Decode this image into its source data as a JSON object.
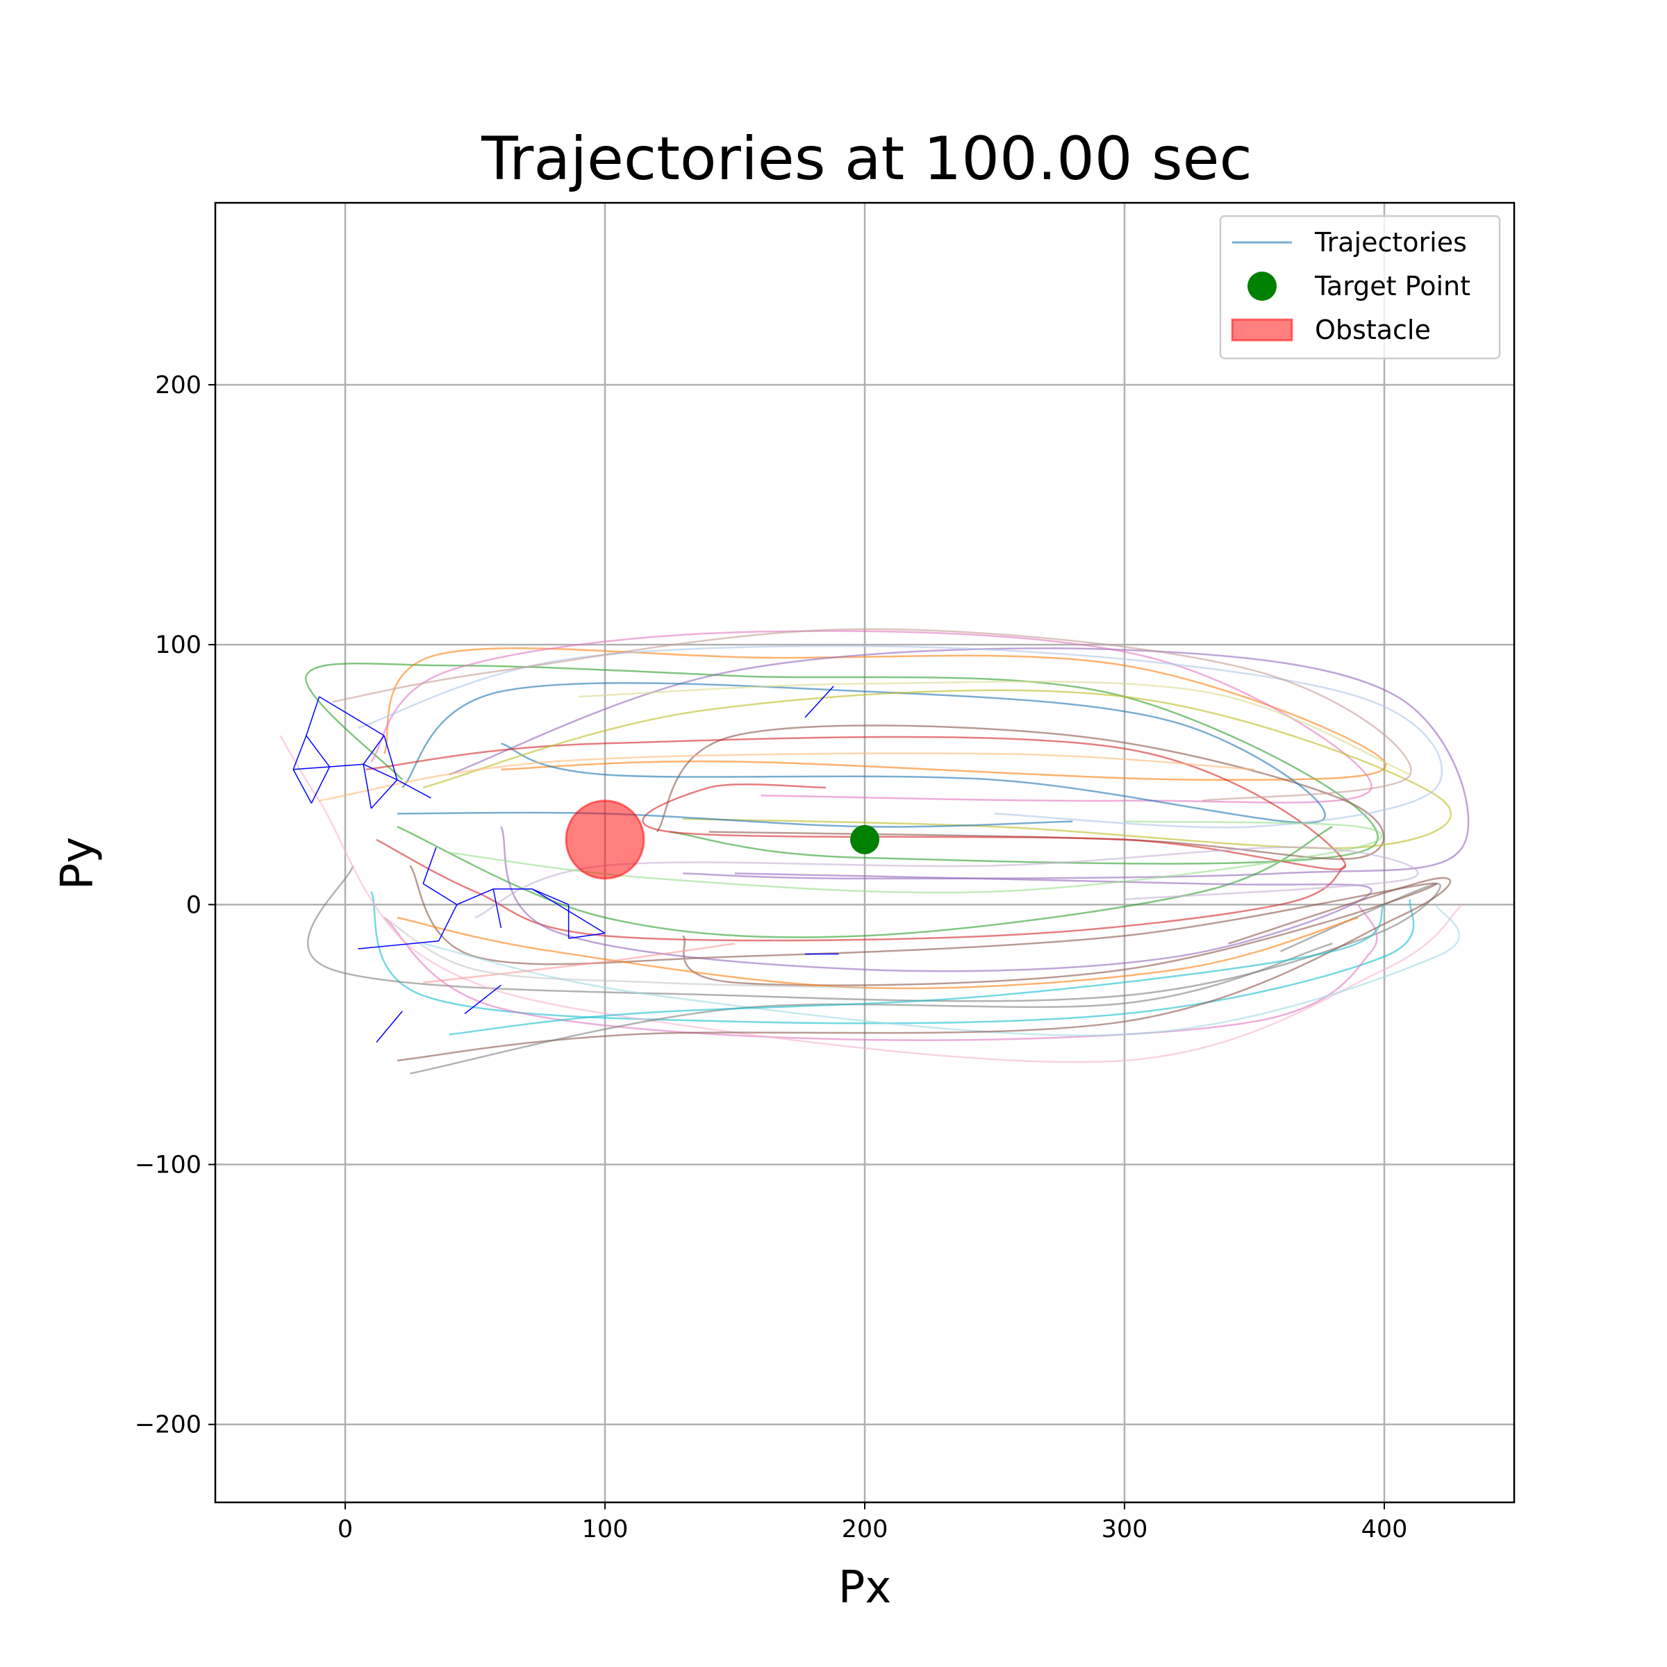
{
  "chart_data": {
    "type": "line",
    "title": "Trajectories at 100.00 sec",
    "xlabel": "Px",
    "ylabel": "Py",
    "xlim": [
      -50,
      450
    ],
    "ylim": [
      -230,
      270
    ],
    "xticks": [
      0,
      100,
      200,
      300,
      400
    ],
    "yticks": [
      -200,
      -100,
      0,
      100,
      200
    ],
    "xtick_labels": [
      "0",
      "100",
      "200",
      "300",
      "400"
    ],
    "ytick_labels": [
      "−200",
      "−100",
      "0",
      "100",
      "200"
    ],
    "grid": true,
    "legend_position": "top-right",
    "legend": [
      {
        "label": "Trajectories",
        "marker": "line",
        "color": "#1f77b4"
      },
      {
        "label": "Target Point",
        "marker": "circle",
        "color": "#008000"
      },
      {
        "label": "Obstacle",
        "marker": "patch",
        "color": "#ff0000"
      }
    ],
    "target_point": {
      "x": 200,
      "y": 25
    },
    "obstacle": {
      "center": [
        100,
        25
      ],
      "radius": 15
    },
    "palette": [
      "#1f77b4",
      "#aec7e8",
      "#ff7f0e",
      "#ffbb78",
      "#2ca02c",
      "#98df8a",
      "#d62728",
      "#ff9896",
      "#9467bd",
      "#c5b0d5",
      "#8c564b",
      "#c49c94",
      "#e377c2",
      "#f7b6d2",
      "#7f7f7f",
      "#c7c7c7",
      "#bcbd22",
      "#dbdb8d",
      "#17becf",
      "#9edae5"
    ],
    "series": [
      {
        "color": "#2ca02c",
        "points": [
          [
            22,
            48
          ],
          [
            -15,
            88
          ],
          [
            40,
            92
          ],
          [
            150,
            88
          ],
          [
            300,
            80
          ],
          [
            395,
            22
          ],
          [
            200,
            18
          ],
          [
            125,
            28
          ]
        ]
      },
      {
        "color": "#ff7f0e",
        "points": [
          [
            15,
            58
          ],
          [
            35,
            96
          ],
          [
            160,
            95
          ],
          [
            300,
            92
          ],
          [
            400,
            55
          ],
          [
            330,
            48
          ],
          [
            150,
            55
          ],
          [
            60,
            52
          ]
        ]
      },
      {
        "color": "#9467bd",
        "points": [
          [
            40,
            50
          ],
          [
            150,
            90
          ],
          [
            300,
            98
          ],
          [
            405,
            80
          ],
          [
            430,
            22
          ],
          [
            360,
            12
          ],
          [
            200,
            10
          ],
          [
            130,
            12
          ]
        ]
      },
      {
        "color": "#e377c2",
        "points": [
          [
            10,
            55
          ],
          [
            40,
            90
          ],
          [
            160,
            105
          ],
          [
            310,
            95
          ],
          [
            395,
            45
          ],
          [
            300,
            40
          ],
          [
            160,
            42
          ]
        ]
      },
      {
        "color": "#8c564b",
        "points": [
          [
            120,
            28
          ],
          [
            150,
            65
          ],
          [
            280,
            65
          ],
          [
            385,
            40
          ],
          [
            390,
            18
          ],
          [
            300,
            25
          ],
          [
            140,
            28
          ]
        ]
      },
      {
        "color": "#1f77b4",
        "points": [
          [
            22,
            45
          ],
          [
            60,
            82
          ],
          [
            200,
            82
          ],
          [
            320,
            70
          ],
          [
            375,
            32
          ],
          [
            250,
            48
          ],
          [
            100,
            50
          ],
          [
            60,
            62
          ]
        ]
      },
      {
        "color": "#d62728",
        "points": [
          [
            8,
            52
          ],
          [
            100,
            62
          ],
          [
            300,
            60
          ],
          [
            385,
            15
          ],
          [
            300,
            25
          ],
          [
            125,
            28
          ],
          [
            140,
            45
          ],
          [
            185,
            45
          ]
        ]
      },
      {
        "color": "#bcbd22",
        "points": [
          [
            30,
            45
          ],
          [
            140,
            75
          ],
          [
            300,
            80
          ],
          [
            420,
            42
          ],
          [
            390,
            22
          ],
          [
            250,
            30
          ],
          [
            130,
            33
          ]
        ]
      },
      {
        "color": "#aec7e8",
        "points": [
          [
            5,
            68
          ],
          [
            90,
            95
          ],
          [
            250,
            98
          ],
          [
            390,
            80
          ],
          [
            420,
            45
          ],
          [
            350,
            30
          ],
          [
            250,
            35
          ]
        ]
      },
      {
        "color": "#c49c94",
        "points": [
          [
            -5,
            78
          ],
          [
            60,
            90
          ],
          [
            200,
            106
          ],
          [
            350,
            90
          ],
          [
            410,
            50
          ],
          [
            330,
            40
          ]
        ]
      },
      {
        "color": "#17becf",
        "points": [
          [
            10,
            5
          ],
          [
            30,
            -35
          ],
          [
            150,
            -45
          ],
          [
            300,
            -42
          ],
          [
            400,
            -20
          ],
          [
            410,
            2
          ]
        ]
      },
      {
        "color": "#7f7f7f",
        "points": [
          [
            3,
            15
          ],
          [
            -5,
            -25
          ],
          [
            150,
            -35
          ],
          [
            300,
            -35
          ],
          [
            395,
            -12
          ],
          [
            420,
            8
          ],
          [
            360,
            -18
          ]
        ]
      },
      {
        "color": "#e377c2",
        "points": [
          [
            15,
            -5
          ],
          [
            60,
            -40
          ],
          [
            200,
            -52
          ],
          [
            350,
            -45
          ],
          [
            395,
            -18
          ],
          [
            390,
            0
          ]
        ]
      },
      {
        "color": "#d62728",
        "points": [
          [
            12,
            25
          ],
          [
            50,
            5
          ],
          [
            100,
            -12
          ],
          [
            250,
            -12
          ],
          [
            360,
            0
          ],
          [
            385,
            15
          ]
        ]
      },
      {
        "color": "#2ca02c",
        "points": [
          [
            20,
            30
          ],
          [
            100,
            -5
          ],
          [
            200,
            -12
          ],
          [
            330,
            5
          ],
          [
            380,
            30
          ]
        ]
      },
      {
        "color": "#9467bd",
        "points": [
          [
            60,
            30
          ],
          [
            80,
            -10
          ],
          [
            200,
            -25
          ],
          [
            320,
            -20
          ],
          [
            395,
            5
          ],
          [
            330,
            8
          ],
          [
            150,
            12
          ]
        ]
      },
      {
        "color": "#8c564b",
        "points": [
          [
            25,
            15
          ],
          [
            50,
            -20
          ],
          [
            150,
            -20
          ],
          [
            300,
            -12
          ],
          [
            420,
            8
          ],
          [
            300,
            -25
          ],
          [
            150,
            -30
          ],
          [
            130,
            -12
          ]
        ]
      },
      {
        "color": "#f7b6d2",
        "points": [
          [
            -25,
            65
          ],
          [
            -10,
            40
          ],
          [
            30,
            -20
          ],
          [
            120,
            -45
          ],
          [
            300,
            -60
          ],
          [
            400,
            -25
          ],
          [
            430,
            0
          ]
        ]
      },
      {
        "color": "#9edae5",
        "points": [
          [
            30,
            -15
          ],
          [
            120,
            -35
          ],
          [
            300,
            -50
          ],
          [
            420,
            -20
          ],
          [
            420,
            0
          ]
        ]
      },
      {
        "color": "#ff7f0e",
        "points": [
          [
            20,
            -5
          ],
          [
            80,
            -18
          ],
          [
            200,
            -32
          ],
          [
            320,
            -25
          ],
          [
            390,
            -5
          ]
        ]
      },
      {
        "color": "#c5b0d5",
        "points": [
          [
            50,
            -5
          ],
          [
            100,
            15
          ],
          [
            250,
            15
          ],
          [
            370,
            22
          ],
          [
            410,
            10
          ],
          [
            300,
            2
          ]
        ]
      },
      {
        "color": "#98df8a",
        "points": [
          [
            40,
            20
          ],
          [
            120,
            10
          ],
          [
            250,
            5
          ],
          [
            380,
            20
          ],
          [
            390,
            30
          ],
          [
            300,
            32
          ]
        ]
      },
      {
        "color": "#8c564b",
        "points": [
          [
            20,
            -60
          ],
          [
            110,
            -50
          ],
          [
            300,
            -45
          ],
          [
            405,
            -5
          ],
          [
            420,
            10
          ],
          [
            340,
            -15
          ]
        ]
      },
      {
        "color": "#7f7f7f",
        "points": [
          [
            25,
            -65
          ],
          [
            150,
            -40
          ],
          [
            300,
            -38
          ],
          [
            380,
            -15
          ]
        ]
      },
      {
        "color": "#17becf",
        "points": [
          [
            40,
            -50
          ],
          [
            110,
            -42
          ],
          [
            250,
            -35
          ],
          [
            380,
            -18
          ],
          [
            400,
            0
          ]
        ]
      },
      {
        "color": "#ff9896",
        "points": [
          [
            30,
            -30
          ],
          [
            100,
            -22
          ],
          [
            150,
            -15
          ]
        ]
      },
      {
        "color": "#dbdb8d",
        "points": [
          [
            90,
            80
          ],
          [
            200,
            85
          ],
          [
            330,
            82
          ],
          [
            410,
            50
          ]
        ]
      },
      {
        "color": "#ffbb78",
        "points": [
          [
            -10,
            40
          ],
          [
            80,
            55
          ],
          [
            250,
            58
          ],
          [
            350,
            52
          ]
        ]
      },
      {
        "color": "#1f77b4",
        "points": [
          [
            20,
            35
          ],
          [
            100,
            35
          ],
          [
            200,
            30
          ],
          [
            280,
            32
          ]
        ]
      },
      {
        "color": "#c7c7c7",
        "points": [
          [
            15,
            -5
          ],
          [
            50,
            -25
          ],
          [
            120,
            -30
          ],
          [
            200,
            -32
          ]
        ]
      }
    ],
    "agent_segments": [
      [
        [
          -10,
          80
        ],
        [
          15,
          65
        ]
      ],
      [
        [
          -10,
          80
        ],
        [
          -15,
          65
        ]
      ],
      [
        [
          -15,
          65
        ],
        [
          -20,
          52
        ]
      ],
      [
        [
          -20,
          52
        ],
        [
          -6,
          53
        ]
      ],
      [
        [
          -6,
          53
        ],
        [
          -15,
          65
        ]
      ],
      [
        [
          -20,
          52
        ],
        [
          -13,
          39
        ]
      ],
      [
        [
          -13,
          39
        ],
        [
          -6,
          53
        ]
      ],
      [
        [
          -6,
          53
        ],
        [
          7,
          54
        ]
      ],
      [
        [
          7,
          54
        ],
        [
          15,
          65
        ]
      ],
      [
        [
          15,
          65
        ],
        [
          20,
          48
        ]
      ],
      [
        [
          20,
          48
        ],
        [
          7,
          54
        ]
      ],
      [
        [
          7,
          54
        ],
        [
          10,
          37
        ]
      ],
      [
        [
          10,
          37
        ],
        [
          20,
          48
        ]
      ],
      [
        [
          20,
          48
        ],
        [
          33,
          41
        ]
      ],
      [
        [
          35,
          22
        ],
        [
          30,
          8
        ]
      ],
      [
        [
          30,
          8
        ],
        [
          43,
          0
        ]
      ],
      [
        [
          43,
          0
        ],
        [
          36,
          -14
        ]
      ],
      [
        [
          36,
          -14
        ],
        [
          5,
          -17
        ]
      ],
      [
        [
          43,
          0
        ],
        [
          57,
          6
        ]
      ],
      [
        [
          57,
          6
        ],
        [
          60,
          -9
        ]
      ],
      [
        [
          57,
          6
        ],
        [
          72,
          6
        ]
      ],
      [
        [
          72,
          6
        ],
        [
          86,
          0
        ]
      ],
      [
        [
          86,
          0
        ],
        [
          86,
          -13
        ]
      ],
      [
        [
          86,
          -13
        ],
        [
          100,
          -11
        ]
      ],
      [
        [
          72,
          6
        ],
        [
          100,
          -11
        ]
      ],
      [
        [
          60,
          -31
        ],
        [
          46,
          -42
        ]
      ],
      [
        [
          22,
          -41
        ],
        [
          12,
          -53
        ]
      ],
      [
        [
          177,
          72
        ],
        [
          188,
          84
        ]
      ],
      [
        [
          177,
          -19
        ],
        [
          190,
          -19
        ]
      ]
    ]
  }
}
